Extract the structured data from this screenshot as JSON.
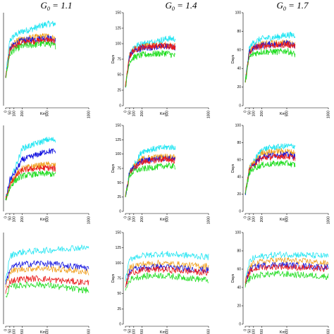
{
  "figure": {
    "col_titles": [
      "G_0 = 1.1",
      "G_0 = 1.4",
      "G_0 = 1.7"
    ],
    "col_title_display": [
      {
        "sym": "G",
        "sub": "0",
        "rest": " = 1.1"
      },
      {
        "sym": "G",
        "sub": "0",
        "rest": " = 1.4"
      },
      {
        "sym": "G",
        "sub": "0",
        "rest": " = 1.7"
      }
    ]
  },
  "series_colors": {
    "cyan": "#22e5f2",
    "orange": "#f0a020",
    "blue": "#1414e0",
    "red": "#e81a1a",
    "green": "#22dd22"
  },
  "chart_data": [
    {
      "type": "line",
      "row": 0,
      "col": 0,
      "xlabel": "Km",
      "ylabel": "",
      "xlim": [
        0,
        1000
      ],
      "ylim": [
        0,
        100
      ],
      "x_ticks": [
        0,
        50,
        100,
        200,
        500,
        1000
      ],
      "y_ticks": [],
      "x": [
        0,
        50,
        100,
        200,
        300,
        400,
        500,
        600
      ],
      "series": [
        {
          "color": "cyan",
          "values": [
            30,
            70,
            75,
            80,
            82,
            85,
            88,
            88
          ]
        },
        {
          "color": "orange",
          "values": [
            30,
            62,
            68,
            72,
            73,
            74,
            75,
            72
          ]
        },
        {
          "color": "blue",
          "values": [
            30,
            60,
            66,
            70,
            71,
            72,
            73,
            70
          ]
        },
        {
          "color": "red",
          "values": [
            30,
            58,
            64,
            68,
            69,
            70,
            71,
            68
          ]
        },
        {
          "color": "green",
          "values": [
            30,
            55,
            60,
            64,
            65,
            66,
            67,
            64
          ]
        }
      ]
    },
    {
      "type": "line",
      "row": 0,
      "col": 1,
      "xlabel": "Km",
      "ylabel": "Days",
      "xlim": [
        0,
        1000
      ],
      "ylim": [
        0,
        150
      ],
      "x_ticks": [
        0,
        50,
        100,
        200,
        500,
        1000
      ],
      "y_ticks": [
        0,
        25,
        50,
        75,
        100,
        125,
        150
      ],
      "x": [
        0,
        50,
        100,
        200,
        300,
        400,
        500,
        600
      ],
      "series": [
        {
          "color": "cyan",
          "values": [
            30,
            85,
            95,
            100,
            102,
            105,
            108,
            108
          ]
        },
        {
          "color": "orange",
          "values": [
            30,
            82,
            90,
            95,
            96,
            97,
            98,
            96
          ]
        },
        {
          "color": "blue",
          "values": [
            30,
            80,
            88,
            93,
            94,
            95,
            96,
            93
          ]
        },
        {
          "color": "red",
          "values": [
            30,
            80,
            90,
            95,
            96,
            96,
            97,
            95
          ]
        },
        {
          "color": "green",
          "values": [
            30,
            72,
            78,
            82,
            83,
            84,
            85,
            80
          ]
        }
      ]
    },
    {
      "type": "line",
      "row": 0,
      "col": 2,
      "xlabel": "Km",
      "ylabel": "Days",
      "xlim": [
        0,
        1000
      ],
      "ylim": [
        0,
        100
      ],
      "x_ticks": [
        0,
        50,
        100,
        200,
        500,
        1000
      ],
      "y_ticks": [
        0,
        20,
        40,
        60,
        80,
        100
      ],
      "x": [
        0,
        50,
        100,
        200,
        300,
        400,
        500,
        600
      ],
      "series": [
        {
          "color": "cyan",
          "values": [
            25,
            62,
            68,
            72,
            73,
            74,
            76,
            76
          ]
        },
        {
          "color": "orange",
          "values": [
            25,
            58,
            63,
            66,
            67,
            67,
            68,
            66
          ]
        },
        {
          "color": "blue",
          "values": [
            25,
            57,
            62,
            65,
            66,
            66,
            67,
            64
          ]
        },
        {
          "color": "red",
          "values": [
            25,
            57,
            62,
            64,
            65,
            65,
            66,
            64
          ]
        },
        {
          "color": "green",
          "values": [
            25,
            52,
            56,
            58,
            58,
            58,
            59,
            55
          ]
        }
      ]
    },
    {
      "type": "line",
      "row": 1,
      "col": 0,
      "xlabel": "Km",
      "ylabel": "",
      "xlim": [
        0,
        1000
      ],
      "ylim": [
        0,
        150
      ],
      "x_ticks": [
        0,
        50,
        100,
        200,
        500,
        1000
      ],
      "y_ticks": [],
      "x": [
        0,
        50,
        100,
        200,
        300,
        400,
        500,
        600
      ],
      "series": [
        {
          "color": "cyan",
          "values": [
            20,
            50,
            70,
            110,
            115,
            120,
            125,
            125
          ]
        },
        {
          "color": "orange",
          "values": [
            20,
            45,
            60,
            75,
            78,
            80,
            82,
            80
          ]
        },
        {
          "color": "blue",
          "values": [
            20,
            55,
            65,
            90,
            95,
            100,
            105,
            105
          ]
        },
        {
          "color": "red",
          "values": [
            20,
            45,
            58,
            72,
            74,
            75,
            76,
            74
          ]
        },
        {
          "color": "green",
          "values": [
            20,
            40,
            52,
            62,
            64,
            65,
            66,
            64
          ]
        }
      ]
    },
    {
      "type": "line",
      "row": 1,
      "col": 1,
      "xlabel": "Km",
      "ylabel": "Days",
      "xlim": [
        0,
        1000
      ],
      "ylim": [
        0,
        150
      ],
      "x_ticks": [
        0,
        50,
        100,
        200,
        500,
        1000
      ],
      "y_ticks": [
        0,
        25,
        50,
        75,
        100,
        125,
        150
      ],
      "x": [
        0,
        50,
        100,
        200,
        300,
        400,
        500,
        600
      ],
      "series": [
        {
          "color": "cyan",
          "values": [
            25,
            70,
            80,
            105,
            108,
            110,
            112,
            112
          ]
        },
        {
          "color": "orange",
          "values": [
            25,
            68,
            78,
            92,
            94,
            95,
            96,
            94
          ]
        },
        {
          "color": "blue",
          "values": [
            25,
            68,
            76,
            88,
            90,
            92,
            93,
            90
          ]
        },
        {
          "color": "red",
          "values": [
            25,
            66,
            75,
            86,
            88,
            90,
            91,
            88
          ]
        },
        {
          "color": "green",
          "values": [
            25,
            62,
            70,
            74,
            76,
            78,
            80,
            78
          ]
        }
      ]
    },
    {
      "type": "line",
      "row": 1,
      "col": 2,
      "xlabel": "Km",
      "ylabel": "Days",
      "xlim": [
        0,
        1000
      ],
      "ylim": [
        0,
        100
      ],
      "x_ticks": [
        0,
        50,
        100,
        200,
        500,
        1000
      ],
      "y_ticks": [
        0,
        20,
        40,
        60,
        80,
        100
      ],
      "x": [
        0,
        50,
        100,
        200,
        300,
        400,
        500,
        600
      ],
      "series": [
        {
          "color": "cyan",
          "values": [
            20,
            50,
            58,
            72,
            74,
            75,
            76,
            76
          ]
        },
        {
          "color": "orange",
          "values": [
            20,
            50,
            56,
            68,
            69,
            70,
            70,
            68
          ]
        },
        {
          "color": "blue",
          "values": [
            20,
            48,
            55,
            64,
            65,
            66,
            66,
            64
          ]
        },
        {
          "color": "red",
          "values": [
            20,
            48,
            54,
            62,
            63,
            64,
            64,
            62
          ]
        },
        {
          "color": "green",
          "values": [
            20,
            45,
            50,
            54,
            55,
            56,
            56,
            54
          ]
        }
      ]
    },
    {
      "type": "line",
      "row": 2,
      "col": 0,
      "xlabel": "Km",
      "ylabel": "",
      "xlim": [
        0,
        1000
      ],
      "ylim": [
        0,
        150
      ],
      "x_ticks": [
        0,
        50,
        100,
        200,
        500,
        1000
      ],
      "y_ticks": [],
      "x": [
        0,
        50,
        100,
        200,
        400,
        600,
        800,
        1000
      ],
      "series": [
        {
          "color": "cyan",
          "values": [
            70,
            110,
            115,
            118,
            120,
            122,
            125,
            125
          ]
        },
        {
          "color": "orange",
          "values": [
            60,
            85,
            88,
            90,
            92,
            90,
            88,
            85
          ]
        },
        {
          "color": "blue",
          "values": [
            65,
            90,
            95,
            98,
            100,
            98,
            95,
            92
          ]
        },
        {
          "color": "red",
          "values": [
            50,
            70,
            72,
            74,
            75,
            72,
            70,
            68
          ]
        },
        {
          "color": "green",
          "values": [
            45,
            60,
            62,
            64,
            65,
            62,
            58,
            55
          ]
        }
      ]
    },
    {
      "type": "line",
      "row": 2,
      "col": 1,
      "xlabel": "Km",
      "ylabel": "Days",
      "xlim": [
        0,
        1000
      ],
      "ylim": [
        0,
        150
      ],
      "x_ticks": [
        0,
        50,
        100,
        200,
        500,
        1000
      ],
      "y_ticks": [
        0,
        25,
        50,
        75,
        100,
        125,
        150
      ],
      "x": [
        0,
        50,
        100,
        200,
        400,
        600,
        800,
        1000
      ],
      "series": [
        {
          "color": "cyan",
          "values": [
            70,
            105,
            110,
            112,
            115,
            114,
            112,
            110
          ]
        },
        {
          "color": "orange",
          "values": [
            65,
            92,
            96,
            98,
            100,
            98,
            96,
            95
          ]
        },
        {
          "color": "blue",
          "values": [
            62,
            86,
            90,
            92,
            94,
            92,
            90,
            88
          ]
        },
        {
          "color": "red",
          "values": [
            60,
            82,
            86,
            88,
            90,
            88,
            86,
            84
          ]
        },
        {
          "color": "green",
          "values": [
            55,
            72,
            76,
            78,
            80,
            78,
            75,
            72
          ]
        }
      ]
    },
    {
      "type": "line",
      "row": 2,
      "col": 2,
      "xlabel": "Km",
      "ylabel": "Days",
      "xlim": [
        0,
        1000
      ],
      "ylim": [
        0,
        100
      ],
      "x_ticks": [
        0,
        50,
        100,
        200,
        500,
        1000
      ],
      "y_ticks": [
        0,
        20,
        40,
        60,
        80,
        100
      ],
      "x": [
        0,
        50,
        100,
        200,
        400,
        600,
        800,
        1000
      ],
      "series": [
        {
          "color": "cyan",
          "values": [
            45,
            68,
            72,
            74,
            76,
            76,
            75,
            74
          ]
        },
        {
          "color": "orange",
          "values": [
            45,
            62,
            66,
            68,
            70,
            69,
            68,
            66
          ]
        },
        {
          "color": "blue",
          "values": [
            45,
            58,
            62,
            64,
            65,
            64,
            63,
            62
          ]
        },
        {
          "color": "red",
          "values": [
            42,
            56,
            60,
            62,
            63,
            62,
            61,
            60
          ]
        },
        {
          "color": "green",
          "values": [
            40,
            50,
            52,
            54,
            55,
            54,
            53,
            52
          ]
        }
      ]
    }
  ]
}
